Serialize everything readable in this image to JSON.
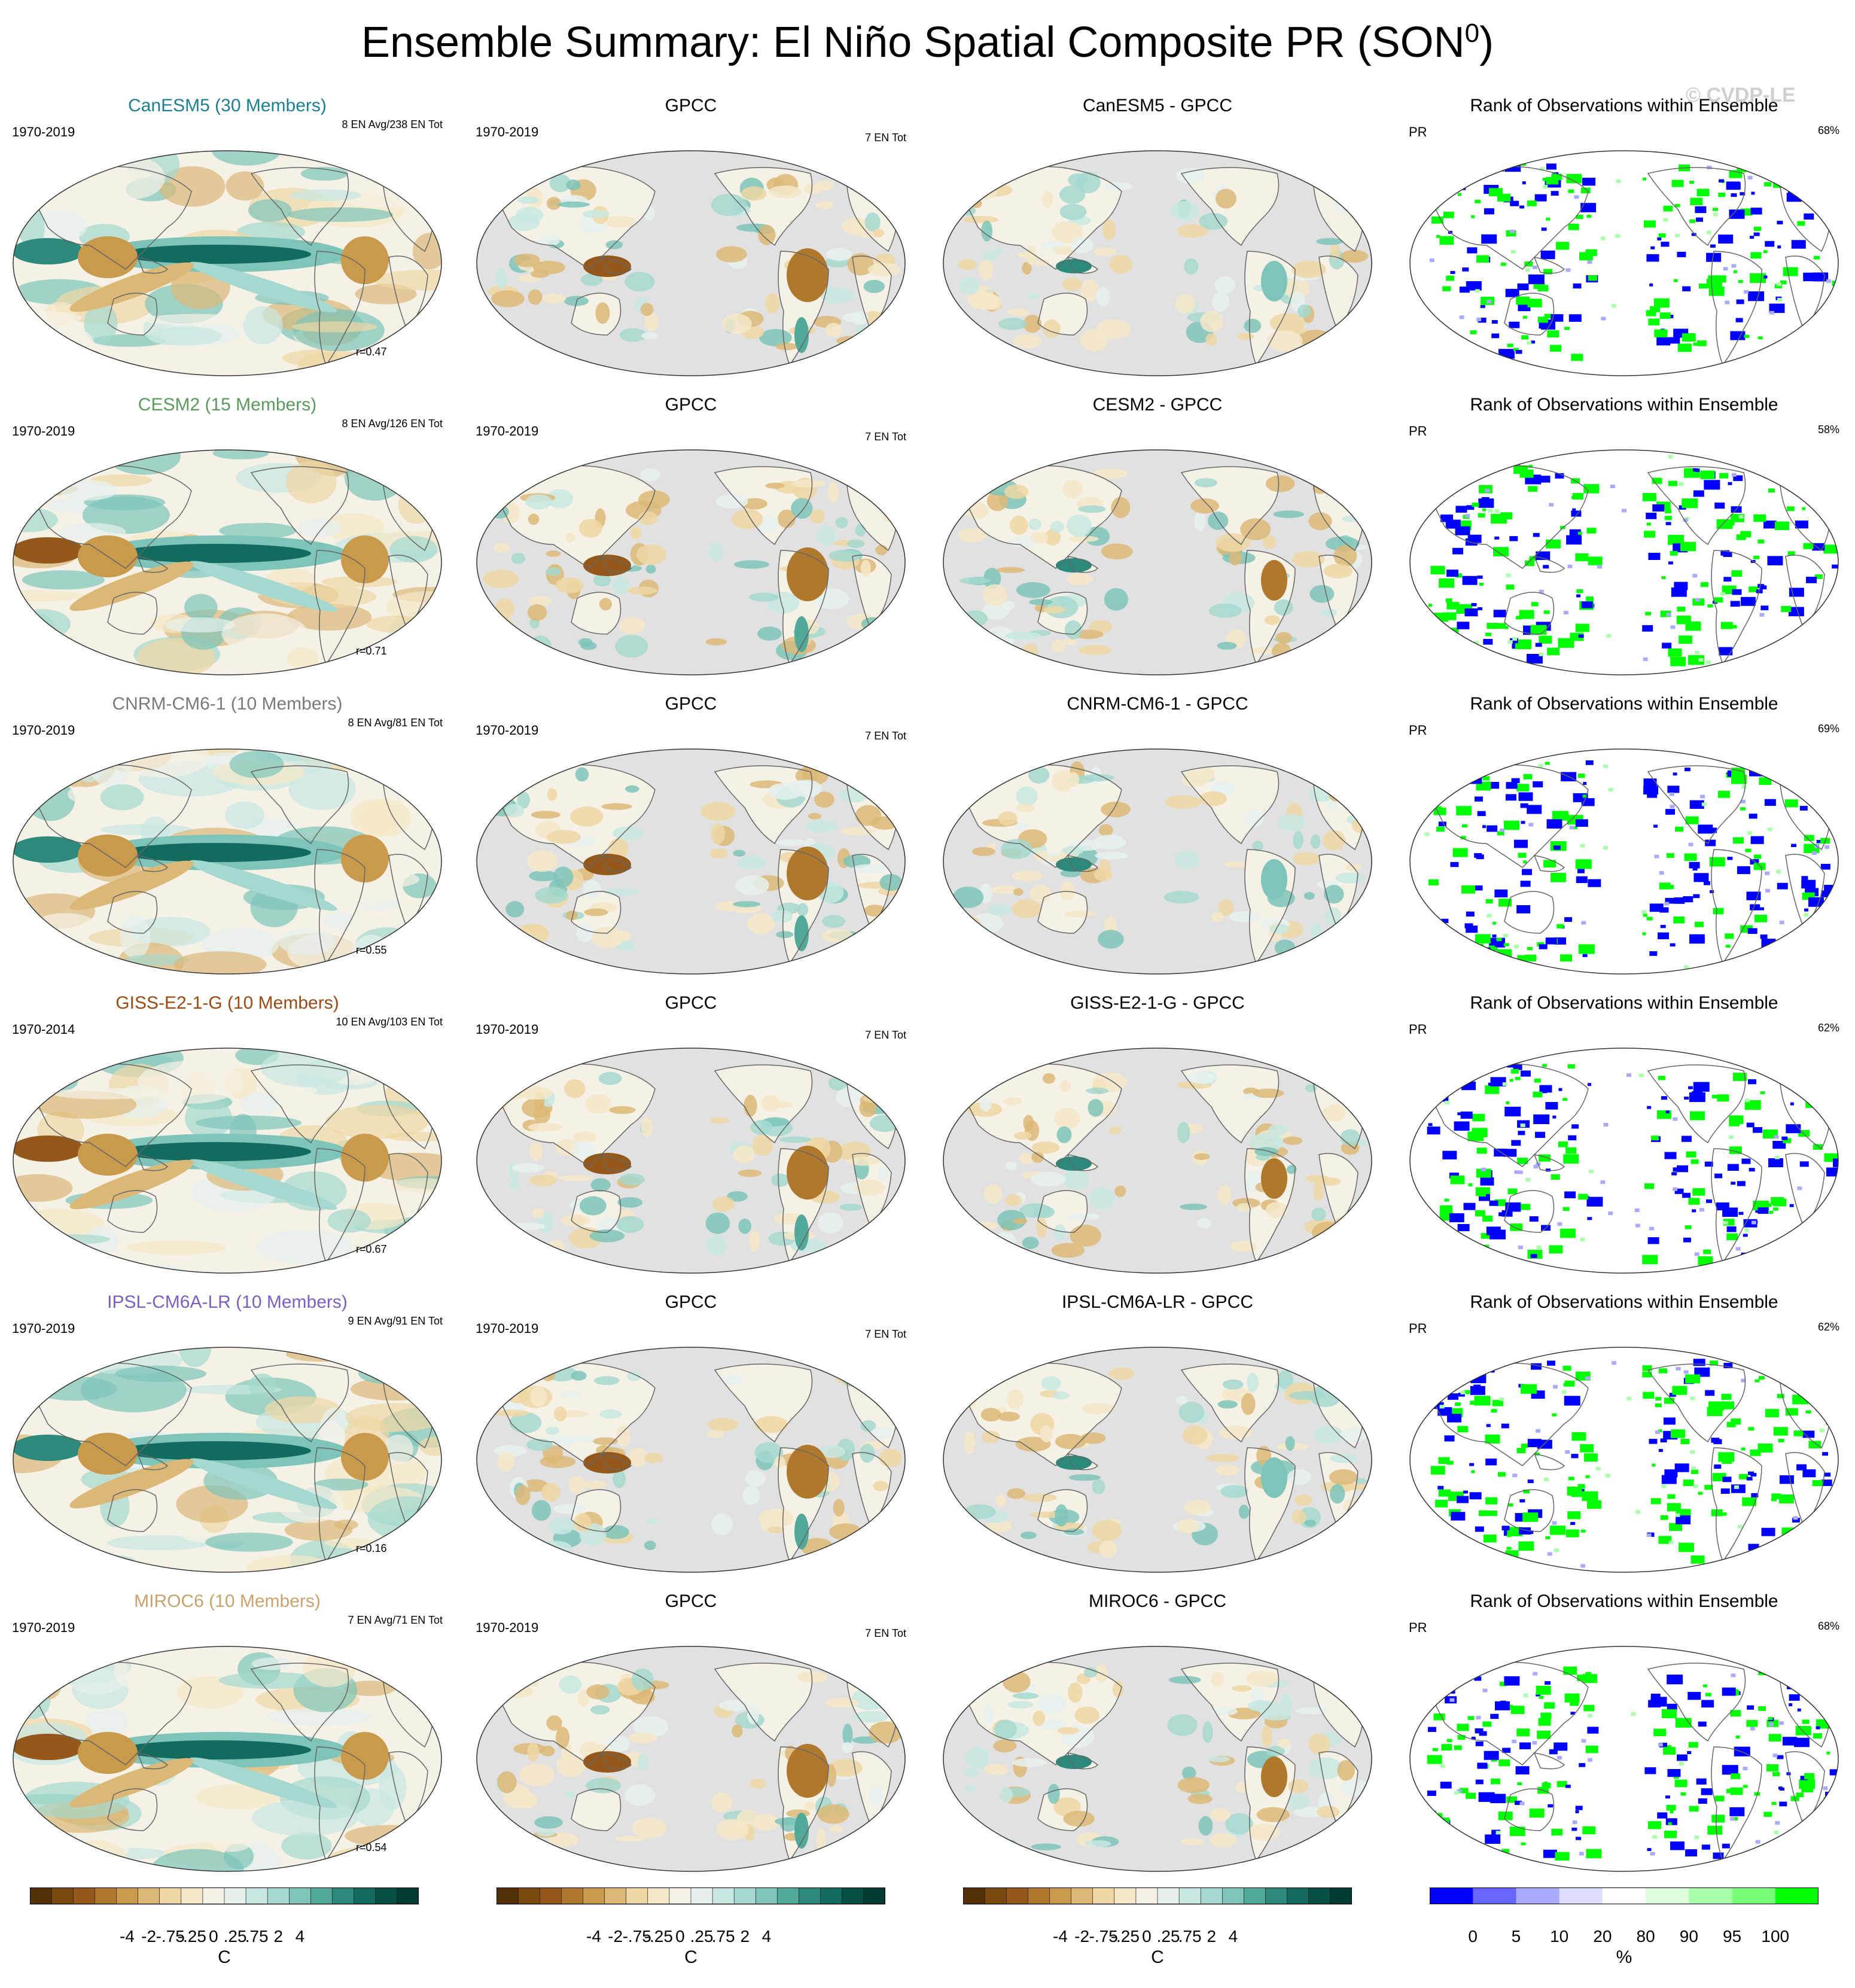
{
  "title": "Ensemble Summary: El Niño Spatial Composite PR (SON",
  "title_sup": "0",
  "title_close": ")",
  "watermark": "© CVDP-LE",
  "colors": {
    "brown_green": [
      "#543005",
      "#7a4a0f",
      "#94581a",
      "#b0782d",
      "#c9994c",
      "#dcb877",
      "#eed7a4",
      "#f5e8c8",
      "#f5f1e6",
      "#e6f1ee",
      "#c8e7e2",
      "#a5d8cf",
      "#7ec4b9",
      "#52a899",
      "#2c8a7c",
      "#136b5f",
      "#064f45",
      "#003c30"
    ],
    "rank": [
      "#0000ff",
      "#6666ff",
      "#aaaaff",
      "#ddddff",
      "#ffffff",
      "#ddffdd",
      "#aaffaa",
      "#77ff77",
      "#00ff00"
    ],
    "ocean_mask": "#e1e1e1",
    "coast": "#666666"
  },
  "rows": [
    {
      "model": "CanESM5 (30 Members)",
      "model_color": "#1c7f95",
      "period": "1970-2019",
      "en_info": "8 EN Avg/238 EN Tot",
      "r": "r=0.47",
      "gpcc_period": "1970-2019",
      "gpcc_en": "7 EN Tot",
      "gpcc_title": "GPCC",
      "diff_title": "CanESM5 - GPCC",
      "rank_title": "Rank of Observations within Ensemble",
      "rank_var": "PR",
      "rank_pct": "68%"
    },
    {
      "model": "CESM2 (15 Members)",
      "model_color": "#5a9a5c",
      "period": "1970-2019",
      "en_info": "8 EN Avg/126 EN Tot",
      "r": "r=0.71",
      "gpcc_period": "1970-2019",
      "gpcc_en": "7 EN Tot",
      "gpcc_title": "GPCC",
      "diff_title": "CESM2 - GPCC",
      "rank_title": "Rank of Observations within Ensemble",
      "rank_var": "PR",
      "rank_pct": "58%"
    },
    {
      "model": "CNRM-CM6-1 (10 Members)",
      "model_color": "#7a7a7a",
      "period": "1970-2019",
      "en_info": "8 EN Avg/81 EN Tot",
      "r": "r=0.55",
      "gpcc_period": "1970-2019",
      "gpcc_en": "7 EN Tot",
      "gpcc_title": "GPCC",
      "diff_title": "CNRM-CM6-1 - GPCC",
      "rank_title": "Rank of Observations within Ensemble",
      "rank_var": "PR",
      "rank_pct": "69%"
    },
    {
      "model": "GISS-E2-1-G (10 Members)",
      "model_color": "#9a4a12",
      "period": "1970-2014",
      "en_info": "10 EN Avg/103 EN Tot",
      "r": "r=0.67",
      "gpcc_period": "1970-2019",
      "gpcc_en": "7 EN Tot",
      "gpcc_title": "GPCC",
      "diff_title": "GISS-E2-1-G - GPCC",
      "rank_title": "Rank of Observations within Ensemble",
      "rank_var": "PR",
      "rank_pct": "62%"
    },
    {
      "model": "IPSL-CM6A-LR (10 Members)",
      "model_color": "#7b5fc4",
      "period": "1970-2019",
      "en_info": "9 EN Avg/91 EN Tot",
      "r": "r=0.16",
      "gpcc_period": "1970-2019",
      "gpcc_en": "7 EN Tot",
      "gpcc_title": "GPCC",
      "diff_title": "IPSL-CM6A-LR - GPCC",
      "rank_title": "Rank of Observations within Ensemble",
      "rank_var": "PR",
      "rank_pct": "62%"
    },
    {
      "model": "MIROC6 (10 Members)",
      "model_color": "#c9a26e",
      "period": "1970-2019",
      "en_info": "7 EN Avg/71 EN Tot",
      "r": "r=0.54",
      "gpcc_period": "1970-2019",
      "gpcc_en": "7 EN Tot",
      "gpcc_title": "GPCC",
      "diff_title": "MIROC6 - GPCC",
      "rank_title": "Rank of Observations within Ensemble",
      "rank_var": "PR",
      "rank_pct": "68%"
    }
  ],
  "colorbars": [
    {
      "ticks": [
        "-4",
        "-2",
        "-.75",
        "-.25",
        "0",
        ".25",
        ".75",
        "2",
        "4"
      ],
      "unit": "C",
      "kind": "brown_green"
    },
    {
      "ticks": [
        "-4",
        "-2",
        "-.75",
        "-.25",
        "0",
        ".25",
        ".75",
        "2",
        "4"
      ],
      "unit": "C",
      "kind": "brown_green"
    },
    {
      "ticks": [
        "-4",
        "-2",
        "-.75",
        "-.25",
        "0",
        ".25",
        ".75",
        "2",
        "4"
      ],
      "unit": "C",
      "kind": "brown_green"
    },
    {
      "ticks": [
        "0",
        "5",
        "10",
        "20",
        "80",
        "90",
        "95",
        "100"
      ],
      "unit": "%",
      "kind": "rank"
    }
  ]
}
